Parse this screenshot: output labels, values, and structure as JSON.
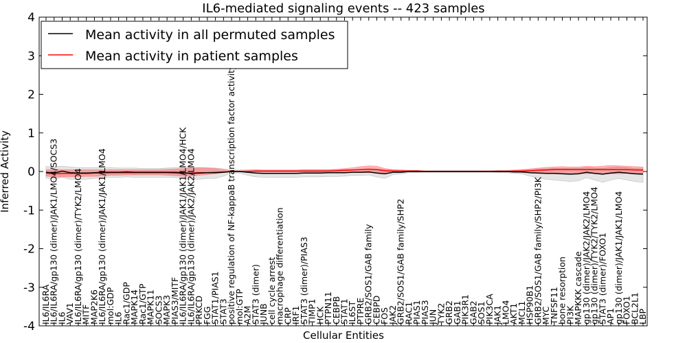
{
  "chart_data": {
    "type": "line",
    "title": "IL6-mediated signaling events -- 423 samples",
    "xlabel": "Cellular Entities",
    "ylabel": "Inferred Activity",
    "ylim": [
      -4,
      4
    ],
    "yticks": [
      "-4",
      "-3",
      "-2",
      "-1",
      "0",
      "1",
      "2",
      "3",
      "4"
    ],
    "grid": false,
    "legend_position": "top-left",
    "categories": [
      "IL6/IL6RA",
      "IL6/IL6RA/gp130 (dimer)/JAK1/LMO4/SOCS3",
      "IL6",
      "VAV1",
      "IL6/IL6RA/gp130 (dimer)/TYK2/LMO4",
      "MITF",
      "MAP2K6",
      "IL6/IL6RA/gp130 (dimer)/JAK1/JAK1/LMO4",
      "mol:GDP",
      "IL6",
      "Rac1/GDP",
      "MAPK14",
      "Rac1/GTP",
      "MAPK11",
      "SOCS3",
      "MAPK3",
      "PIAS3/MITF",
      "IL6/IL6RA/gp130 (dimer)/JAK1/JAK1/LMO4/HCK",
      "IL6/IL6RA/gp130 (dimer)/JAK2/JAK2/LMO4",
      "PRKCD",
      "FGG",
      "STAT1/PIAS1",
      "STAT3",
      "positive regulation of NF-kappaB transcription factor activity",
      "mol:GTP",
      "A2M",
      "STAT3 (dimer)",
      "JUNB",
      "cell cycle arrest",
      "macrophage differentiation",
      "CRP",
      "IRF1",
      "STAT3 (dimer)/PIAS3",
      "TIMP1",
      "HCK",
      "PTPN11",
      "CEBPB",
      "STAT1",
      "IL6ST",
      "PTPRE",
      "GRB2/SOS1/GAB family",
      "CEBPD",
      "FOS",
      "JAK2",
      "GRB2/SOS1/GAB family/SHP2",
      "RAC1",
      "PIAS1",
      "PIAS3",
      "JUN",
      "TYK2",
      "GRB2",
      "GAB1",
      "PIK3R1",
      "GAB2",
      "SOS1",
      "PIK3CA",
      "JAK1",
      "LMO4",
      "AKT1",
      "MCL1",
      "HSP90B1",
      "GRB2/SOS1/GAB family/SHP2/PI3K",
      "MYC",
      "TNFSF11",
      "bone resorption",
      "PI3K",
      "MAPKKK cascade",
      "gp130 (dimer)/JAK2/JAK2/LMO4",
      "gp130 (dimer)/TYK2/TYK2/LMO4",
      "STAT3 (dimer)/FOXO1",
      "AP1",
      "gp130 (dimer)/JAK1/JAK1/LMO4",
      "FOXO1",
      "BCL2L1",
      "LBP"
    ],
    "series": [
      {
        "name": "Mean activity in all permuted samples",
        "color": "#000000",
        "values": [
          -0.02,
          -0.04,
          0.01,
          -0.03,
          -0.04,
          -0.04,
          -0.03,
          -0.02,
          -0.02,
          -0.02,
          -0.01,
          -0.02,
          -0.02,
          -0.02,
          -0.02,
          -0.02,
          -0.02,
          -0.03,
          -0.05,
          -0.04,
          -0.03,
          -0.03,
          -0.02,
          0.0,
          0.0,
          -0.02,
          -0.04,
          -0.05,
          -0.05,
          -0.05,
          -0.05,
          -0.05,
          -0.04,
          -0.04,
          -0.04,
          -0.03,
          -0.03,
          -0.03,
          -0.02,
          -0.02,
          -0.01,
          -0.04,
          -0.06,
          -0.02,
          -0.02,
          0.0,
          0.0,
          0.0,
          0.0,
          0.0,
          0.0,
          0.0,
          0.0,
          0.0,
          0.0,
          0.0,
          0.0,
          0.0,
          -0.01,
          -0.01,
          -0.03,
          -0.04,
          -0.05,
          -0.05,
          -0.06,
          -0.07,
          -0.06,
          -0.02,
          -0.05,
          -0.07,
          -0.04,
          -0.02,
          -0.04,
          -0.06,
          -0.07
        ],
        "lower": [
          -0.17,
          -0.2,
          -0.15,
          -0.2,
          -0.2,
          -0.2,
          -0.18,
          -0.16,
          -0.15,
          -0.15,
          -0.14,
          -0.15,
          -0.15,
          -0.15,
          -0.15,
          -0.15,
          -0.16,
          -0.17,
          -0.2,
          -0.2,
          -0.18,
          -0.18,
          -0.12,
          -0.04,
          -0.04,
          -0.1,
          -0.14,
          -0.15,
          -0.15,
          -0.15,
          -0.15,
          -0.15,
          -0.14,
          -0.14,
          -0.14,
          -0.13,
          -0.13,
          -0.12,
          -0.1,
          -0.1,
          -0.09,
          -0.14,
          -0.18,
          -0.08,
          -0.06,
          -0.03,
          -0.03,
          -0.02,
          -0.02,
          -0.02,
          -0.02,
          -0.02,
          -0.02,
          -0.02,
          -0.02,
          -0.02,
          -0.03,
          -0.03,
          -0.05,
          -0.06,
          -0.12,
          -0.16,
          -0.2,
          -0.22,
          -0.24,
          -0.26,
          -0.24,
          -0.16,
          -0.22,
          -0.28,
          -0.22,
          -0.18,
          -0.22,
          -0.26,
          -0.28
        ],
        "upper": [
          0.13,
          0.12,
          0.14,
          0.12,
          0.1,
          0.1,
          0.1,
          0.1,
          0.1,
          0.09,
          0.09,
          0.09,
          0.08,
          0.08,
          0.08,
          0.09,
          0.1,
          0.11,
          0.1,
          0.1,
          0.1,
          0.09,
          0.07,
          0.04,
          0.04,
          0.05,
          0.05,
          0.04,
          0.04,
          0.04,
          0.04,
          0.04,
          0.05,
          0.05,
          0.05,
          0.05,
          0.05,
          0.05,
          0.05,
          0.05,
          0.06,
          0.06,
          0.05,
          0.05,
          0.04,
          0.03,
          0.03,
          0.02,
          0.02,
          0.02,
          0.02,
          0.02,
          0.02,
          0.02,
          0.02,
          0.02,
          0.02,
          0.02,
          0.03,
          0.04,
          0.05,
          0.06,
          0.07,
          0.08,
          0.08,
          0.08,
          0.08,
          0.1,
          0.09,
          0.08,
          0.1,
          0.12,
          0.1,
          0.08,
          0.07
        ]
      },
      {
        "name": "Mean activity in patient samples",
        "color": "#ff0000",
        "values": [
          -0.04,
          -0.06,
          -0.05,
          -0.05,
          -0.05,
          -0.05,
          -0.04,
          -0.04,
          -0.03,
          -0.03,
          -0.03,
          -0.03,
          -0.03,
          -0.03,
          -0.03,
          -0.03,
          -0.04,
          -0.05,
          -0.04,
          -0.03,
          -0.03,
          -0.02,
          -0.01,
          0.0,
          0.0,
          0.0,
          0.01,
          0.01,
          0.01,
          0.01,
          0.01,
          0.01,
          0.01,
          0.01,
          0.01,
          0.01,
          0.02,
          0.03,
          0.04,
          0.05,
          0.06,
          0.05,
          0.02,
          0.01,
          0.01,
          0.01,
          0.01,
          0.0,
          0.0,
          0.0,
          0.0,
          0.0,
          0.0,
          0.0,
          0.0,
          0.0,
          0.0,
          0.0,
          0.01,
          0.01,
          0.02,
          0.03,
          0.04,
          0.05,
          0.05,
          0.05,
          0.05,
          0.05,
          0.05,
          0.05,
          0.05,
          0.05,
          0.05,
          0.04,
          0.04
        ],
        "lower": [
          -0.12,
          -0.15,
          -0.14,
          -0.14,
          -0.14,
          -0.13,
          -0.13,
          -0.12,
          -0.1,
          -0.1,
          -0.09,
          -0.09,
          -0.09,
          -0.09,
          -0.09,
          -0.1,
          -0.11,
          -0.13,
          -0.12,
          -0.1,
          -0.08,
          -0.06,
          -0.03,
          -0.01,
          -0.01,
          -0.02,
          -0.02,
          -0.02,
          -0.02,
          -0.02,
          -0.02,
          -0.02,
          -0.02,
          -0.02,
          -0.02,
          -0.03,
          -0.03,
          -0.02,
          -0.02,
          -0.03,
          -0.03,
          -0.03,
          -0.04,
          -0.03,
          -0.02,
          -0.01,
          -0.01,
          -0.01,
          -0.01,
          -0.01,
          -0.01,
          -0.01,
          -0.01,
          -0.01,
          -0.01,
          -0.01,
          -0.01,
          -0.01,
          -0.02,
          -0.03,
          -0.04,
          -0.05,
          -0.05,
          -0.06,
          -0.06,
          -0.05,
          -0.05,
          -0.06,
          -0.05,
          -0.06,
          -0.06,
          -0.06,
          -0.05,
          -0.05,
          -0.05
        ],
        "upper": [
          0.05,
          0.06,
          0.05,
          0.05,
          0.05,
          0.05,
          0.05,
          0.05,
          0.05,
          0.05,
          0.05,
          0.05,
          0.05,
          0.05,
          0.05,
          0.06,
          0.07,
          0.08,
          0.09,
          0.1,
          0.09,
          0.08,
          0.05,
          0.02,
          0.02,
          0.03,
          0.04,
          0.04,
          0.04,
          0.04,
          0.04,
          0.04,
          0.05,
          0.05,
          0.05,
          0.05,
          0.06,
          0.08,
          0.1,
          0.13,
          0.15,
          0.14,
          0.08,
          0.05,
          0.04,
          0.03,
          0.03,
          0.02,
          0.02,
          0.02,
          0.02,
          0.02,
          0.02,
          0.02,
          0.02,
          0.02,
          0.03,
          0.03,
          0.04,
          0.05,
          0.07,
          0.09,
          0.11,
          0.12,
          0.13,
          0.12,
          0.12,
          0.14,
          0.13,
          0.14,
          0.16,
          0.15,
          0.14,
          0.13,
          0.12
        ]
      }
    ]
  }
}
